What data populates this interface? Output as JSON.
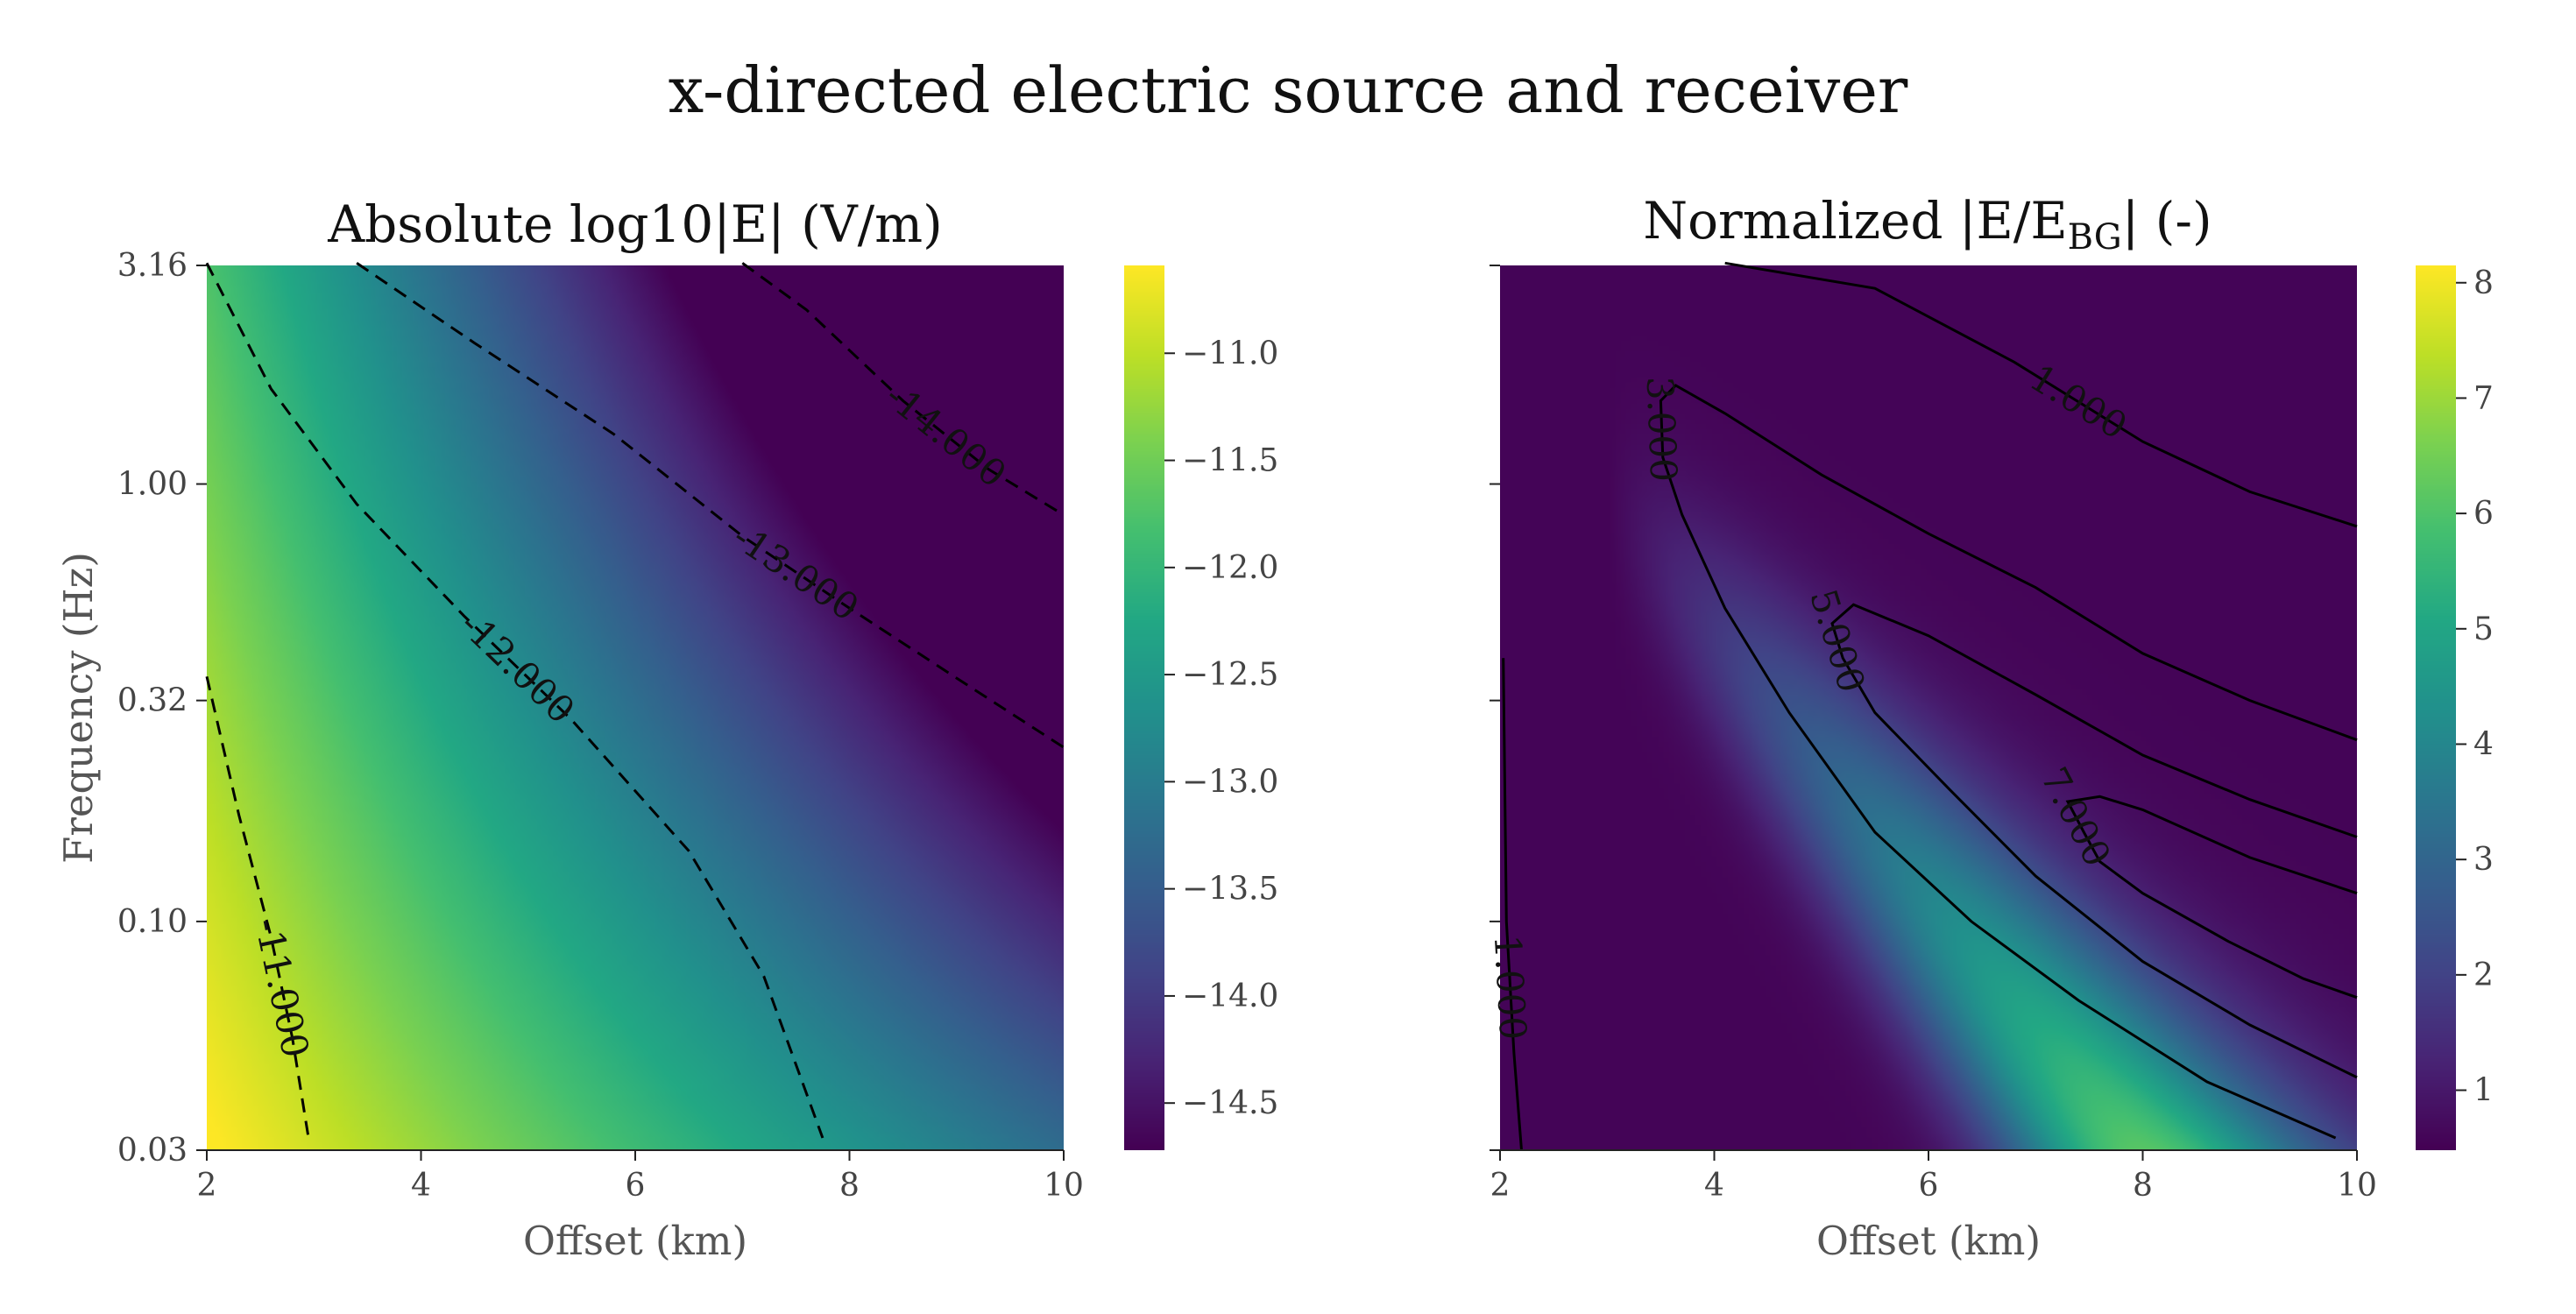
{
  "figure": {
    "suptitle": "x-directed electric source and receiver"
  },
  "chart_data": [
    {
      "type": "heatmap",
      "title": "Absolute log10|E| (V/m)",
      "xlabel": "Offset (km)",
      "ylabel": "Frequency (Hz)",
      "x_range": [
        2,
        10
      ],
      "x_ticks": [
        "2",
        "4",
        "6",
        "8",
        "10"
      ],
      "y_range": [
        0.03,
        3.16
      ],
      "y_scale": "log",
      "y_ticks": [
        "0.03",
        "0.10",
        "0.32",
        "1.00",
        "3.16"
      ],
      "colormap": "viridis",
      "color_range": [
        -14.72,
        -10.59
      ],
      "colorbar_ticks": [
        "−11.0",
        "−11.5",
        "−12.0",
        "−12.5",
        "−13.0",
        "−13.5",
        "−14.0",
        "−14.5"
      ],
      "contour_style": "dashed",
      "contours": [
        {
          "level": -11.0,
          "label": "-11.000",
          "points": [
            [
              2.0,
              0.363
            ],
            [
              2.3,
              0.175
            ],
            [
              2.6,
              0.092
            ],
            [
              2.8,
              0.054
            ],
            [
              2.95,
              0.032
            ]
          ]
        },
        {
          "level": -12.0,
          "label": "-12.000",
          "points": [
            [
              2.0,
              3.2
            ],
            [
              2.6,
              1.65
            ],
            [
              3.4,
              0.9
            ],
            [
              4.4,
              0.5
            ],
            [
              5.4,
              0.29
            ],
            [
              6.5,
              0.145
            ],
            [
              7.2,
              0.075
            ],
            [
              7.75,
              0.032
            ]
          ]
        },
        {
          "level": -13.0,
          "label": "-13.000",
          "points": [
            [
              3.4,
              3.2
            ],
            [
              4.5,
              2.1
            ],
            [
              5.8,
              1.3
            ],
            [
              7.0,
              0.76
            ],
            [
              8.0,
              0.52
            ],
            [
              9.0,
              0.36
            ],
            [
              10.0,
              0.25
            ]
          ]
        },
        {
          "level": -14.0,
          "label": "-14.000",
          "points": [
            [
              7.0,
              3.2
            ],
            [
              7.6,
              2.5
            ],
            [
              8.5,
              1.55
            ],
            [
              9.3,
              1.08
            ],
            [
              10.0,
              0.85
            ]
          ]
        }
      ]
    },
    {
      "type": "heatmap",
      "title": "Normalized |E/E",
      "title_sub": "BG",
      "title_end": "| (-)",
      "xlabel": "Offset (km)",
      "x_range": [
        2,
        10
      ],
      "x_ticks": [
        "2",
        "4",
        "6",
        "8",
        "10"
      ],
      "y_range": [
        0.03,
        3.16
      ],
      "y_scale": "log",
      "colormap": "viridis",
      "color_range": [
        0.48,
        8.15
      ],
      "colorbar_ticks": [
        "1",
        "2",
        "3",
        "4",
        "5",
        "6",
        "7",
        "8"
      ],
      "contour_style": "solid",
      "contours": [
        {
          "level": 1.0,
          "label": "1.000",
          "points": [
            [
              4.1,
              3.2
            ],
            [
              5.5,
              2.8
            ],
            [
              6.8,
              1.9
            ],
            [
              8.0,
              1.25
            ],
            [
              9.0,
              0.96
            ],
            [
              10.0,
              0.8
            ]
          ]
        },
        {
          "level": 1.0,
          "label": "1.000",
          "points": [
            [
              2.03,
              0.4
            ],
            [
              2.06,
              0.1
            ],
            [
              2.13,
              0.05
            ],
            [
              2.2,
              0.03
            ]
          ]
        },
        {
          "level": 3.0,
          "label": "3.000",
          "points": [
            [
              9.8,
              0.032
            ],
            [
              8.6,
              0.043
            ],
            [
              7.4,
              0.066
            ],
            [
              6.4,
              0.1
            ],
            [
              5.5,
              0.16
            ],
            [
              4.7,
              0.3
            ],
            [
              4.1,
              0.52
            ],
            [
              3.7,
              0.85
            ],
            [
              3.52,
              1.15
            ],
            [
              3.5,
              1.55
            ],
            [
              3.64,
              1.68
            ],
            [
              4.1,
              1.45
            ],
            [
              5.0,
              1.05
            ],
            [
              6.0,
              0.77
            ],
            [
              7.0,
              0.58
            ],
            [
              8.0,
              0.41
            ],
            [
              9.0,
              0.32
            ],
            [
              10.0,
              0.26
            ]
          ]
        },
        {
          "level": 5.0,
          "label": "5.000",
          "points": [
            [
              10.0,
              0.044
            ],
            [
              9.0,
              0.058
            ],
            [
              8.0,
              0.081
            ],
            [
              7.0,
              0.127
            ],
            [
              6.2,
              0.2
            ],
            [
              5.5,
              0.3
            ],
            [
              5.2,
              0.4
            ],
            [
              5.1,
              0.48
            ],
            [
              5.3,
              0.53
            ],
            [
              6.0,
              0.45
            ],
            [
              7.0,
              0.33
            ],
            [
              8.0,
              0.24
            ],
            [
              9.0,
              0.19
            ],
            [
              10.0,
              0.156
            ]
          ]
        },
        {
          "level": 7.0,
          "label": "7.000",
          "points": [
            [
              10.0,
              0.067
            ],
            [
              9.5,
              0.074
            ],
            [
              8.8,
              0.09
            ],
            [
              8.0,
              0.116
            ],
            [
              7.6,
              0.137
            ],
            [
              7.45,
              0.16
            ],
            [
              7.3,
              0.188
            ],
            [
              7.6,
              0.193
            ],
            [
              8.0,
              0.18
            ],
            [
              9.0,
              0.14
            ],
            [
              10.0,
              0.116
            ]
          ]
        }
      ]
    }
  ]
}
